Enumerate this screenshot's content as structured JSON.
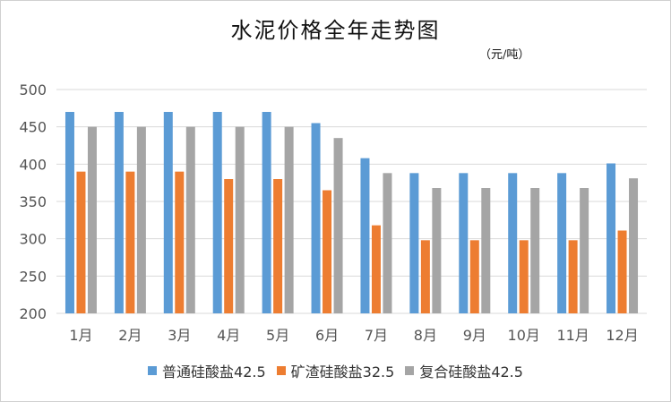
{
  "chart_data": {
    "type": "bar",
    "title": "水泥价格全年走势图",
    "unit": "（元/吨）",
    "categories": [
      "1月",
      "2月",
      "3月",
      "4月",
      "5月",
      "6月",
      "7月",
      "8月",
      "9月",
      "10月",
      "11月",
      "12月"
    ],
    "series": [
      {
        "name": "普通硅酸盐42.5",
        "color": "#5b9bd5",
        "values": [
          470,
          470,
          470,
          470,
          470,
          455,
          408,
          388,
          388,
          388,
          388,
          401
        ]
      },
      {
        "name": "矿渣硅酸盐32.5",
        "color": "#ed7d31",
        "values": [
          390,
          390,
          390,
          380,
          380,
          365,
          318,
          298,
          298,
          298,
          298,
          311
        ]
      },
      {
        "name": "复合硅酸盐42.5",
        "color": "#a5a5a5",
        "values": [
          450,
          450,
          450,
          450,
          450,
          435,
          388,
          368,
          368,
          368,
          368,
          381
        ]
      }
    ],
    "ylim": [
      200,
      500
    ],
    "yticks": [
      "200",
      "250",
      "300",
      "350",
      "400",
      "450",
      "500"
    ],
    "grid": true,
    "legend_position": "bottom"
  }
}
